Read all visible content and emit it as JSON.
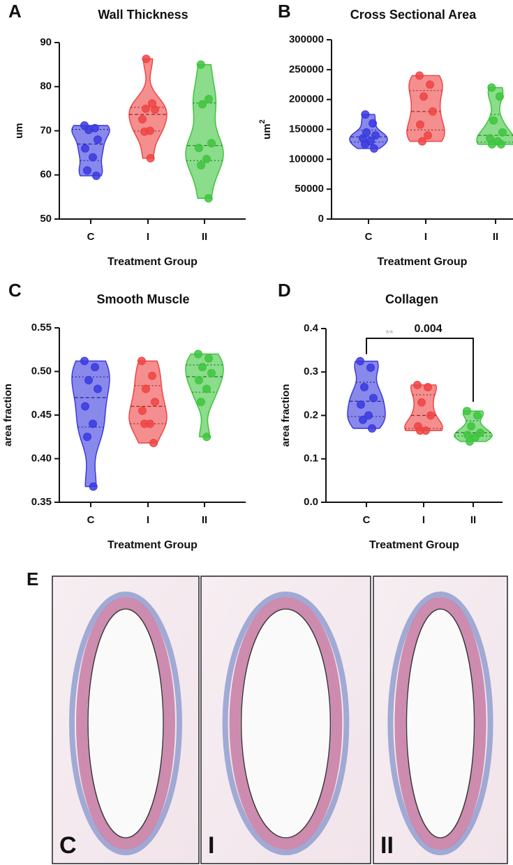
{
  "chart_data": [
    {
      "type": "violin",
      "panel_label": "A",
      "title": "Wall Thickness",
      "ylabel": "um",
      "xlabel": "Treatment Group",
      "categories": [
        "C",
        "I",
        "II"
      ],
      "ylim": [
        50,
        90
      ],
      "yticks": [
        50,
        60,
        70,
        80,
        90
      ],
      "series": [
        {
          "name": "C",
          "color": "#3a3ae0",
          "values": [
            71.2,
            70.6,
            70.2,
            68.0,
            66.0,
            64.0,
            61.0,
            59.8
          ]
        },
        {
          "name": "I",
          "color": "#ef4444",
          "values": [
            86.3,
            76.2,
            75.0,
            74.8,
            72.6,
            70.0,
            69.8,
            63.8
          ]
        },
        {
          "name": "II",
          "color": "#3ec43e",
          "values": [
            85.0,
            77.2,
            76.0,
            67.2,
            66.1,
            63.6,
            62.2,
            54.7
          ]
        }
      ]
    },
    {
      "type": "violin",
      "panel_label": "B",
      "title": "Cross Sectional Area",
      "ylabel": {
        "base": "um",
        "sup": "2"
      },
      "xlabel": "Treatment Group",
      "categories": [
        "C",
        "I",
        "II"
      ],
      "ylim": [
        0,
        300000
      ],
      "yticks": [
        0,
        50000,
        100000,
        150000,
        200000,
        250000,
        300000
      ],
      "series": [
        {
          "name": "C",
          "color": "#3a3ae0",
          "values": [
            175000,
            160000,
            145000,
            140000,
            135000,
            130000,
            125000,
            118000
          ]
        },
        {
          "name": "I",
          "color": "#ef4444",
          "values": [
            240000,
            225000,
            205000,
            180000,
            158000,
            140000,
            130000
          ]
        },
        {
          "name": "II",
          "color": "#3ec43e",
          "values": [
            220000,
            205000,
            165000,
            145000,
            135000,
            130000,
            125000,
            125000
          ]
        }
      ]
    },
    {
      "type": "violin",
      "panel_label": "C",
      "title": "Smooth Muscle",
      "ylabel": "area fraction",
      "xlabel": "Treatment Group",
      "categories": [
        "C",
        "I",
        "II"
      ],
      "ylim": [
        0.35,
        0.55
      ],
      "yticks": [
        0.35,
        {
          "value": 0.4,
          "label": "0.40"
        },
        0.45,
        {
          "value": 0.5,
          "label": "0.50"
        },
        0.55
      ],
      "series": [
        {
          "name": "C",
          "color": "#3a3ae0",
          "values": [
            0.512,
            0.505,
            0.49,
            0.48,
            0.46,
            0.44,
            0.425,
            0.368
          ]
        },
        {
          "name": "I",
          "color": "#ef4444",
          "values": [
            0.512,
            0.495,
            0.48,
            0.465,
            0.455,
            0.44,
            0.44,
            0.418
          ]
        },
        {
          "name": "II",
          "color": "#3ec43e",
          "values": [
            0.52,
            0.515,
            0.505,
            0.498,
            0.49,
            0.48,
            0.465,
            0.425
          ]
        }
      ]
    },
    {
      "type": "violin",
      "panel_label": "D",
      "title": "Collagen",
      "ylabel": "area fraction",
      "xlabel": "Treatment Group",
      "categories": [
        "C",
        "I",
        "II"
      ],
      "ylim": [
        0,
        0.4
      ],
      "yticks": [
        {
          "value": 0,
          "label": "0.0"
        },
        0.1,
        0.2,
        0.3,
        0.4
      ],
      "annotation": {
        "text": "0.004",
        "stars": "**"
      },
      "series": [
        {
          "name": "C",
          "color": "#3a3ae0",
          "values": [
            0.325,
            0.31,
            0.265,
            0.24,
            0.225,
            0.2,
            0.19,
            0.17
          ]
        },
        {
          "name": "I",
          "color": "#ef4444",
          "values": [
            0.27,
            0.265,
            0.23,
            0.2,
            0.175,
            0.165,
            0.165
          ]
        },
        {
          "name": "II",
          "color": "#3ec43e",
          "values": [
            0.21,
            0.2,
            0.175,
            0.16,
            0.155,
            0.15,
            0.14
          ]
        }
      ]
    }
  ],
  "histology": {
    "panel_label": "E",
    "images": [
      {
        "label": "C"
      },
      {
        "label": "I"
      },
      {
        "label": "II"
      }
    ]
  }
}
